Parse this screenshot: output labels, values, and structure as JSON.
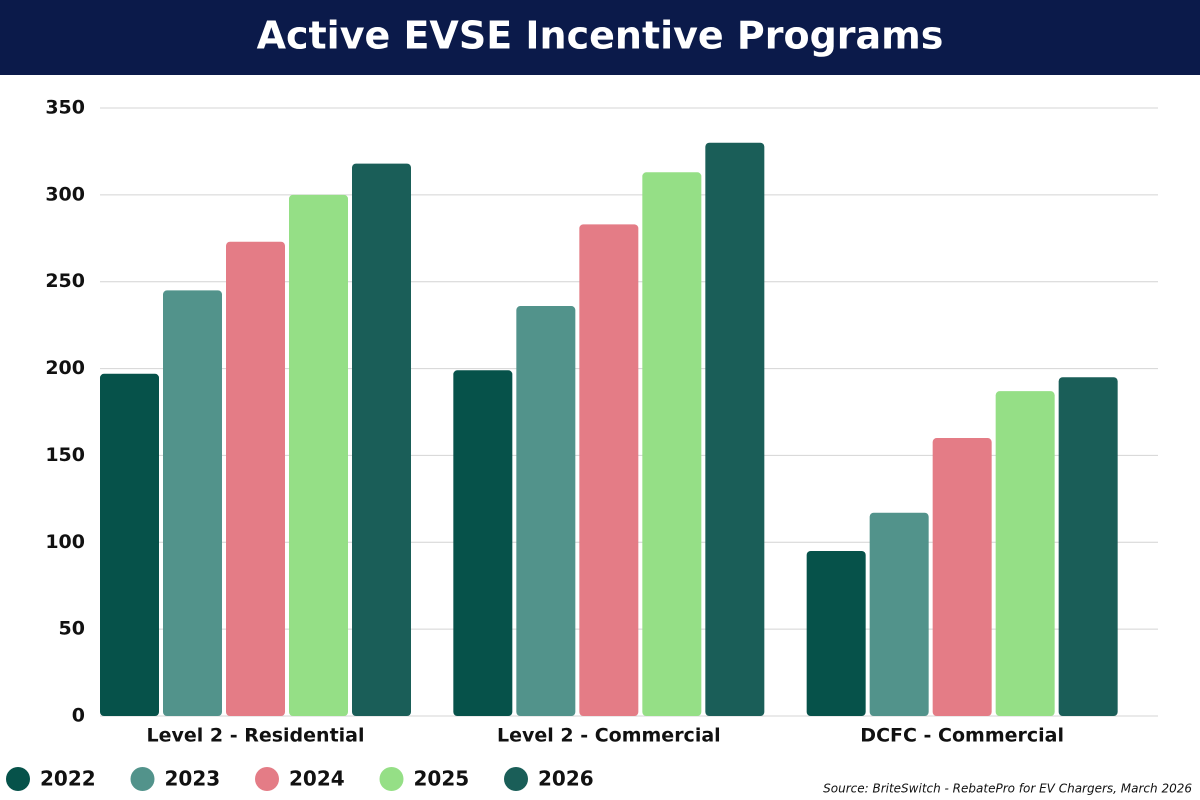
{
  "chart_data": {
    "type": "bar",
    "title": "Active EVSE Incentive Programs",
    "source": "Source: BriteSwitch - RebatePro for EV Chargers, March 2026",
    "categories": [
      "Level 2 - Residential",
      "Level 2 - Commercial",
      "DCFC - Commercial"
    ],
    "series": [
      {
        "name": "2022",
        "color": "#06524a",
        "values": [
          197,
          199,
          95
        ]
      },
      {
        "name": "2023",
        "color": "#52938b",
        "values": [
          245,
          236,
          117
        ]
      },
      {
        "name": "2024",
        "color": "#e47c86",
        "values": [
          273,
          283,
          160
        ]
      },
      {
        "name": "2025",
        "color": "#95df86",
        "values": [
          300,
          313,
          187
        ]
      },
      {
        "name": "2026",
        "color": "#1a5e58",
        "values": [
          318,
          330,
          195
        ]
      }
    ],
    "ylim": [
      0,
      350
    ],
    "yticks": [
      0,
      50,
      100,
      150,
      200,
      250,
      300,
      350
    ],
    "grid": true
  }
}
